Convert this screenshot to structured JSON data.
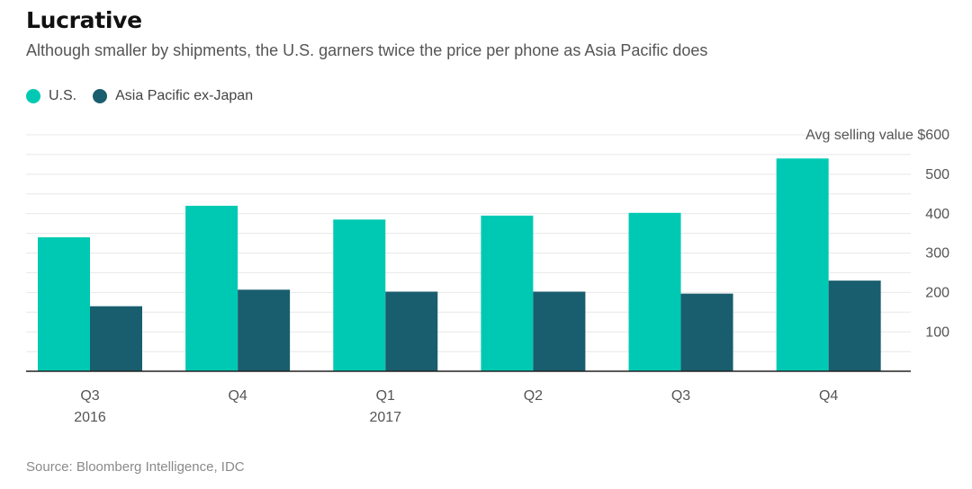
{
  "title": "Lucrative",
  "subtitle": "Although smaller by shipments, the U.S. garners twice the price per phone as Asia Pacific does",
  "source": "Source: Bloomberg Intelligence, IDC",
  "colors": {
    "us": "#00c9b3",
    "apac": "#195e6e",
    "grid": "#e8e8e8",
    "axis": "#222222",
    "tick_text": "#555555"
  },
  "chart_data": {
    "type": "bar",
    "categories": [
      "Q3",
      "Q4",
      "Q1",
      "Q2",
      "Q3",
      "Q4"
    ],
    "year_labels": [
      "2016",
      "",
      "2017",
      "",
      "",
      ""
    ],
    "series": [
      {
        "name": "U.S.",
        "values": [
          340,
          420,
          385,
          395,
          402,
          540
        ]
      },
      {
        "name": "Asia Pacific ex-Japan",
        "values": [
          165,
          207,
          202,
          202,
          197,
          230
        ]
      }
    ],
    "ylabel": "Avg selling value $",
    "yticks": [
      {
        "value": 600,
        "label": "Avg selling value $600"
      },
      {
        "value": 500,
        "label": "500"
      },
      {
        "value": 400,
        "label": "400"
      },
      {
        "value": 300,
        "label": "300"
      },
      {
        "value": 200,
        "label": "200"
      },
      {
        "value": 100,
        "label": "100"
      }
    ],
    "ylim": [
      0,
      600
    ],
    "grid": true,
    "legend_position": "top-left"
  }
}
